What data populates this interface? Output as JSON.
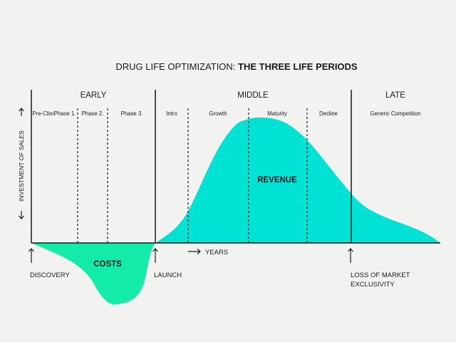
{
  "title": {
    "prefix": "DRUG LIFE OPTIMIZATION: ",
    "emphasis": "THE THREE LIFE PERIODS"
  },
  "periods": {
    "early": "EARLY",
    "middle": "MIDDLE",
    "late": "LATE"
  },
  "phases": {
    "pre_clin": "Pre-Clin/Phase 1.",
    "phase2": "Phase 2.",
    "phase3": "Phase 3.",
    "intro": "Intro",
    "growth": "Growth",
    "maturity": "Maturity",
    "decline": "Decline",
    "generic": "Generic Competition"
  },
  "axis": {
    "y_label": "INVESTMENT OF SALES",
    "x_label": "YEARS",
    "x_arrow": "→"
  },
  "areas": {
    "revenue": "REVENUE",
    "costs": "COSTS"
  },
  "milestones": {
    "discovery": "DISCOVERY",
    "launch": "LAUNCH",
    "loss_line1": "LOSS OF MARKET",
    "loss_line2": "EXCLUSIVITY"
  },
  "colors": {
    "revenue": "#00e3d4",
    "costs": "#13eca9",
    "line": "#1a1a1a",
    "background": "#f2f2f0"
  }
}
